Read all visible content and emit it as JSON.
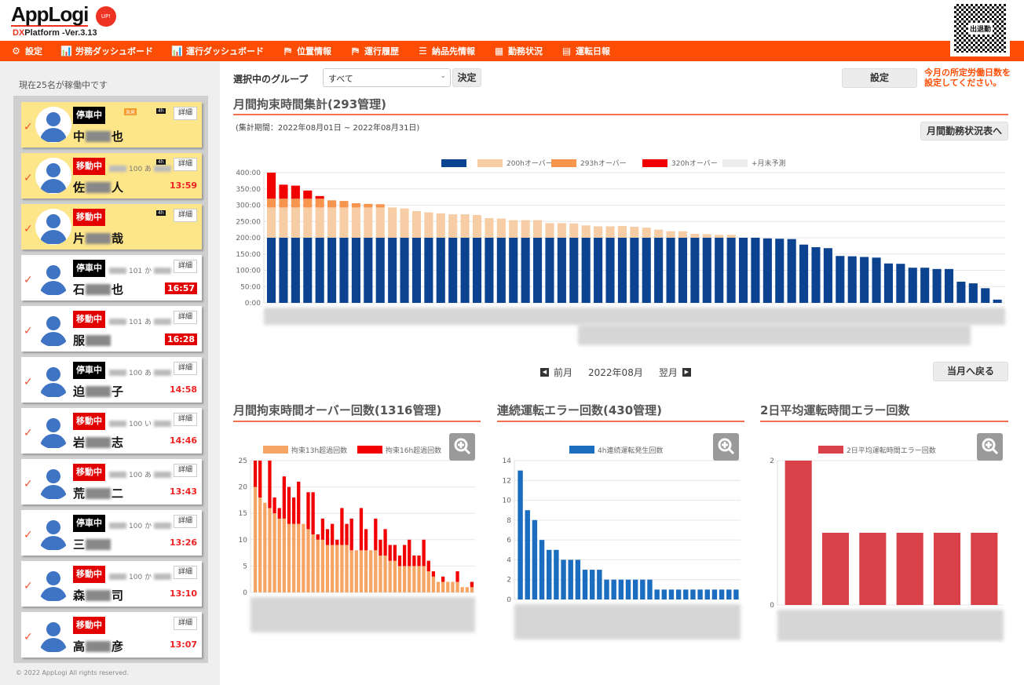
{
  "header": {
    "logo": "AppLogi",
    "logo_badge": "UP!",
    "version_prefix": "DX",
    "version_rest": "Platform -Ver.3.13",
    "qr_label": "出退勤"
  },
  "nav": [
    {
      "label": "設定",
      "icon": "gear-icon",
      "glyph": "⚙"
    },
    {
      "label": "労務ダッシュボード",
      "icon": "bar-chart-icon",
      "glyph": "📊"
    },
    {
      "label": "運行ダッシュボード",
      "icon": "bar-chart-icon",
      "glyph": "📊"
    },
    {
      "label": "位置情報",
      "icon": "map-pin-icon",
      "glyph": "⛿"
    },
    {
      "label": "運行履歴",
      "icon": "map-pin-icon",
      "glyph": "⛿"
    },
    {
      "label": "納品先情報",
      "icon": "list-icon",
      "glyph": "☰"
    },
    {
      "label": "勤務状況",
      "icon": "calendar-icon",
      "glyph": "▦"
    },
    {
      "label": "運転日報",
      "icon": "document-icon",
      "glyph": "▤"
    }
  ],
  "sidebar": {
    "active_count": "現在25名が稼働中です",
    "detail_label": "詳細",
    "badge_4h": "4h",
    "badge_kyu": "急発",
    "drivers": [
      {
        "status": "停車中",
        "type": "stop",
        "first": "中",
        "last": "也",
        "plate": "",
        "time": "",
        "alert": true,
        "b4h": true,
        "kyu": true
      },
      {
        "status": "移動中",
        "type": "move",
        "first": "佐",
        "last": "人",
        "plate": "100 あ",
        "time": "13:59",
        "alert": true,
        "b4h": true
      },
      {
        "status": "移動中",
        "type": "move",
        "first": "片",
        "last": "哉",
        "plate": "",
        "time": "",
        "alert": true,
        "b4h": true
      },
      {
        "status": "停車中",
        "type": "stop",
        "first": "石",
        "last": "也",
        "plate": "101 か",
        "time": "16:57",
        "hl": true
      },
      {
        "status": "移動中",
        "type": "move",
        "first": "服",
        "last": "",
        "plate": "101 あ",
        "time": "16:28",
        "hl": true
      },
      {
        "status": "停車中",
        "type": "stop",
        "first": "迫",
        "last": "子",
        "plate": "100 あ",
        "time": "14:58"
      },
      {
        "status": "移動中",
        "type": "move",
        "first": "岩",
        "last": "志",
        "plate": "100 い",
        "time": "14:46"
      },
      {
        "status": "移動中",
        "type": "move",
        "first": "荒",
        "last": "二",
        "plate": "100 あ",
        "time": "13:43"
      },
      {
        "status": "停車中",
        "type": "stop",
        "first": "三",
        "last": "",
        "plate": "100 か",
        "time": "13:26"
      },
      {
        "status": "移動中",
        "type": "move",
        "first": "森",
        "last": "司",
        "plate": "100 か",
        "time": "13:10"
      },
      {
        "status": "移動中",
        "type": "move",
        "first": "高",
        "last": "彦",
        "plate": "",
        "time": "13:07"
      }
    ],
    "copyright": "© 2022 AppLogi All rights reserved."
  },
  "toolbar": {
    "group_label": "選択中のグループ",
    "group_value": "すべて",
    "decide": "決定",
    "settings": "設定",
    "notice_line1": "今月の所定労働日数を",
    "notice_line2": "設定してください。"
  },
  "main": {
    "title": "月間拘束時間集計(293管理)",
    "period": "(集計期間：2022年08月01日 ~ 2022年08月31日)",
    "monthly_button": "月間勤務状況表へ",
    "prev": "前月",
    "current_month": "2022年08月",
    "next": "翌月",
    "back_button": "当月へ戻る"
  },
  "sections": {
    "over": "月間拘束時間オーバー回数(1316管理)",
    "cont": "連続運転エラー回数(430管理)",
    "avg2": "2日平均運転時間エラー回数"
  },
  "colors": {
    "accent": "#fd4d04",
    "blue": "#0b4391",
    "peach": "#f6cda4",
    "orange": "#f7954f",
    "red": "#f20000",
    "forecast": "#ececec",
    "cont_blue": "#1c6dbf",
    "avg_red": "#d9404a",
    "over13": "#f6a565"
  },
  "chart_data": [
    {
      "type": "bar",
      "title": "月間拘束時間集計(293管理)",
      "stacked": true,
      "ylim": [
        0,
        400
      ],
      "yticks": [
        "0:00",
        "50:00",
        "100:00",
        "150:00",
        "200:00",
        "250:00",
        "300:00",
        "350:00",
        "400:00"
      ],
      "thresholds": [
        200,
        293,
        320
      ],
      "legend": [
        "",
        "200hオーバー",
        "293hオーバー",
        "320hオーバー",
        "+月末予測"
      ],
      "values": [
        400,
        363,
        360,
        345,
        328,
        315,
        313,
        306,
        304,
        303,
        293,
        290,
        282,
        278,
        275,
        272,
        272,
        270,
        260,
        259,
        254,
        254,
        254,
        245,
        245,
        244,
        238,
        235,
        235,
        236,
        234,
        231,
        225,
        220,
        220,
        212,
        211,
        209,
        209,
        200,
        200,
        198,
        197,
        196,
        179,
        171,
        168,
        144,
        143,
        141,
        139,
        121,
        120,
        108,
        108,
        104,
        104,
        65,
        60,
        45,
        10
      ]
    },
    {
      "type": "bar",
      "title": "月間拘束時間オーバー回数(1316管理)",
      "stacked": true,
      "ylim": [
        0,
        25
      ],
      "yticks": [
        "0",
        "5",
        "10",
        "15",
        "20",
        "25"
      ],
      "series": [
        {
          "name": "拘束13h超過回数",
          "values": [
            20,
            18,
            17,
            16,
            15,
            14,
            14,
            13,
            13,
            13,
            13,
            12,
            11,
            10,
            10,
            9,
            9,
            9,
            9,
            9,
            8,
            8,
            8,
            8,
            8,
            8,
            7,
            7,
            6,
            6,
            5,
            5,
            5,
            5,
            5,
            5,
            4,
            3,
            2,
            2,
            2,
            2,
            2,
            1,
            1,
            1
          ]
        },
        {
          "name": "拘束16h超過回数",
          "values": [
            5,
            7,
            0,
            9,
            3,
            2,
            8,
            7,
            5,
            8,
            0,
            7,
            8,
            1,
            4,
            3,
            4,
            1,
            7,
            4,
            6,
            0,
            8,
            4,
            0,
            6,
            3,
            5,
            3,
            3,
            2,
            4,
            5,
            2,
            2,
            5,
            2,
            1,
            0,
            1,
            0,
            0,
            2,
            0,
            0,
            1
          ]
        }
      ]
    },
    {
      "type": "bar",
      "title": "連続運転エラー回数(430管理)",
      "ylim": [
        0,
        14
      ],
      "yticks": [
        "0",
        "2",
        "4",
        "6",
        "8",
        "10",
        "12",
        "14"
      ],
      "series": [
        {
          "name": "4h連続運転発生回数",
          "values": [
            13,
            9,
            8,
            6,
            5,
            5,
            4,
            4,
            4,
            3,
            3,
            3,
            2,
            2,
            2,
            2,
            2,
            2,
            2,
            1,
            1,
            1,
            1,
            1,
            1,
            1,
            1,
            1,
            1,
            1,
            1
          ]
        }
      ]
    },
    {
      "type": "bar",
      "title": "2日平均運転時間エラー回数",
      "ylim": [
        0,
        2
      ],
      "yticks": [
        "0",
        "2"
      ],
      "series": [
        {
          "name": "2日平均運転時間エラー回数",
          "values": [
            2,
            1,
            1,
            1,
            1,
            1
          ]
        }
      ]
    }
  ]
}
